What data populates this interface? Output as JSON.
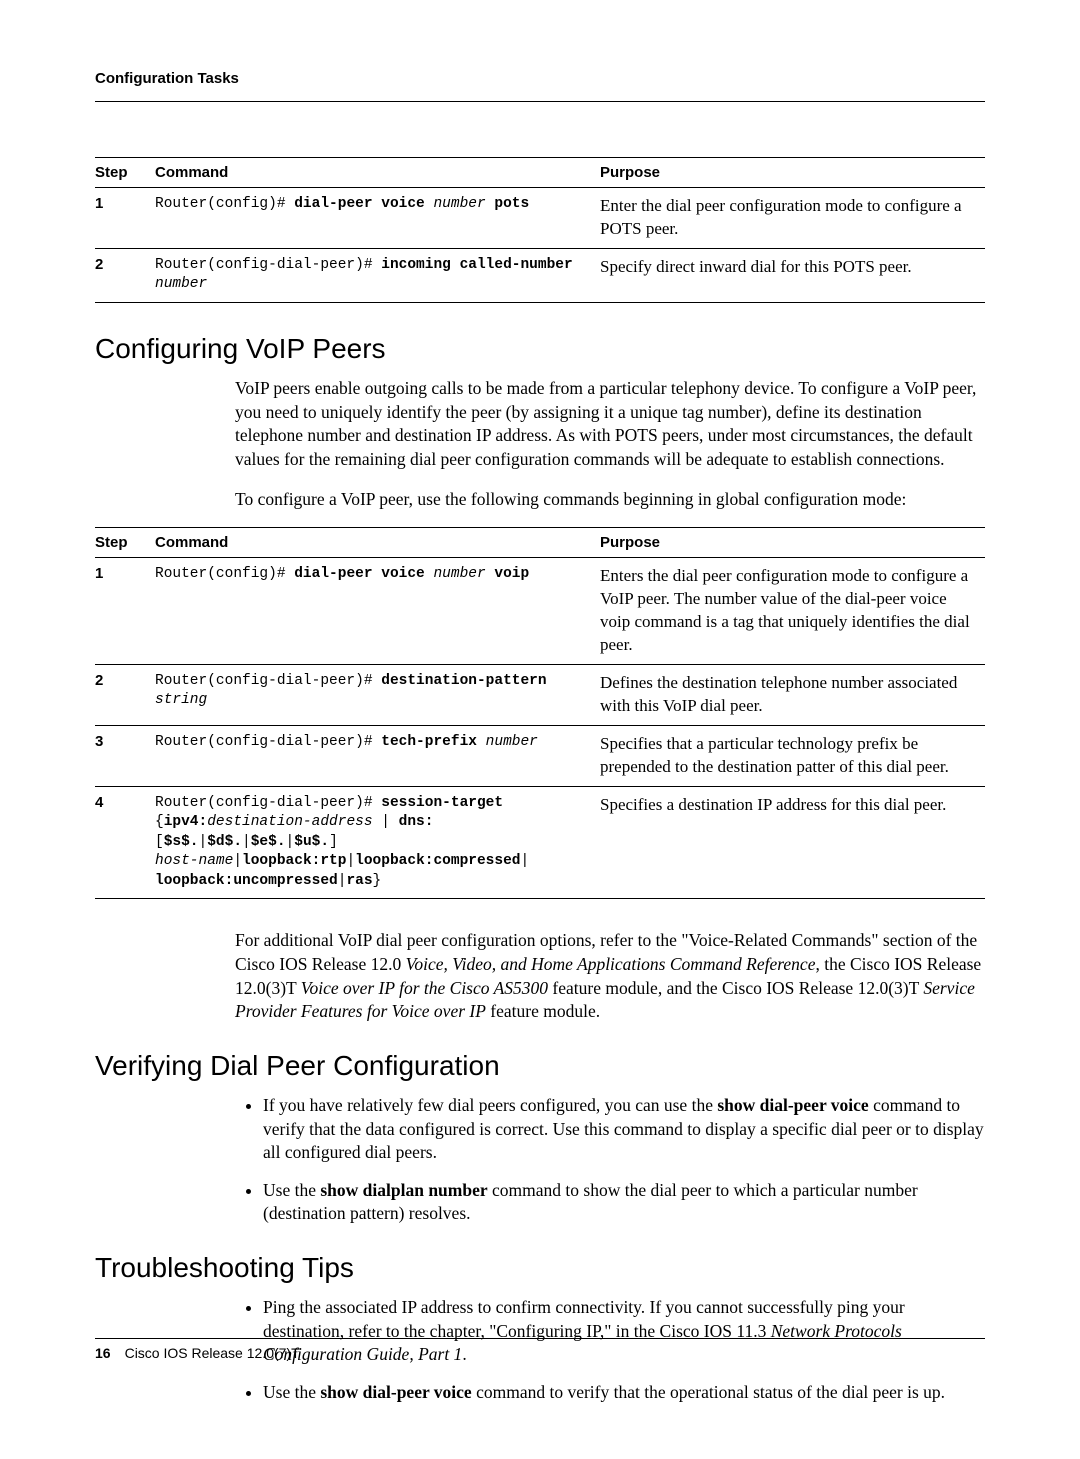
{
  "header": {
    "title": "Configuration Tasks"
  },
  "table1": {
    "headers": {
      "step": "Step",
      "command": "Command",
      "purpose": "Purpose"
    },
    "rows": [
      {
        "step": "1",
        "cmd_segments": [
          {
            "t": "Router(config)# ",
            "b": false,
            "i": false
          },
          {
            "t": "dial-peer voice ",
            "b": true,
            "i": false
          },
          {
            "t": "number ",
            "b": false,
            "i": true
          },
          {
            "t": "pots",
            "b": true,
            "i": false
          }
        ],
        "purpose": "Enter the dial peer configuration mode to configure a POTS peer."
      },
      {
        "step": "2",
        "cmd_segments": [
          {
            "t": "Router(config-dial-peer)# ",
            "b": false,
            "i": false
          },
          {
            "t": "incoming called-number",
            "b": true,
            "i": false
          },
          {
            "t": "\n",
            "b": false,
            "i": false
          },
          {
            "t": "number",
            "b": false,
            "i": true
          }
        ],
        "purpose": "Specify direct inward dial for this POTS peer."
      }
    ]
  },
  "section_voip": {
    "title": "Configuring VoIP Peers",
    "para1": "VoIP peers enable outgoing calls to be made from a particular telephony device. To configure a VoIP peer, you need to uniquely identify the peer (by assigning it a unique tag number), define its destination telephone number and destination IP address. As with POTS peers, under most circumstances, the default values for the remaining dial peer configuration commands will be adequate to establish connections.",
    "para2": "To configure a VoIP peer, use the following commands beginning in global configuration mode:"
  },
  "table2": {
    "headers": {
      "step": "Step",
      "command": "Command",
      "purpose": "Purpose"
    },
    "rows": [
      {
        "step": "1",
        "cmd_segments": [
          {
            "t": "Router(config)# ",
            "b": false,
            "i": false
          },
          {
            "t": "dial-peer voice ",
            "b": true,
            "i": false
          },
          {
            "t": "number ",
            "b": false,
            "i": true
          },
          {
            "t": "voip",
            "b": true,
            "i": false
          }
        ],
        "purpose": "Enters the dial peer configuration mode to configure a VoIP peer. The number value of the dial-peer voice voip command is a tag that uniquely identifies the dial peer."
      },
      {
        "step": "2",
        "cmd_segments": [
          {
            "t": "Router(config-dial-peer)# ",
            "b": false,
            "i": false
          },
          {
            "t": "destination-pattern ",
            "b": true,
            "i": false
          },
          {
            "t": "string",
            "b": false,
            "i": true
          }
        ],
        "purpose": "Defines the destination telephone number associated with this VoIP dial peer."
      },
      {
        "step": "3",
        "cmd_segments": [
          {
            "t": "Router(config-dial-peer)# ",
            "b": false,
            "i": false
          },
          {
            "t": "tech-prefix ",
            "b": true,
            "i": false
          },
          {
            "t": "number",
            "b": false,
            "i": true
          }
        ],
        "purpose": "Specifies that a particular technology prefix be prepended to the destination patter of this dial peer."
      },
      {
        "step": "4",
        "cmd_segments": [
          {
            "t": "Router(config-dial-peer)# ",
            "b": false,
            "i": false
          },
          {
            "t": "session-target",
            "b": true,
            "i": false
          },
          {
            "t": "\n{",
            "b": false,
            "i": false
          },
          {
            "t": "ipv4:",
            "b": true,
            "i": false
          },
          {
            "t": "destination-address",
            "b": false,
            "i": true
          },
          {
            "t": " | ",
            "b": false,
            "i": false
          },
          {
            "t": "dns:",
            "b": true,
            "i": false
          },
          {
            "t": "[",
            "b": false,
            "i": false
          },
          {
            "t": "$s$.",
            "b": true,
            "i": false
          },
          {
            "t": "|",
            "b": false,
            "i": false
          },
          {
            "t": "$d$.",
            "b": true,
            "i": false
          },
          {
            "t": "|",
            "b": false,
            "i": false
          },
          {
            "t": "$e$.",
            "b": true,
            "i": false
          },
          {
            "t": "|",
            "b": false,
            "i": false
          },
          {
            "t": "$u$.",
            "b": true,
            "i": false
          },
          {
            "t": "]\n",
            "b": false,
            "i": false
          },
          {
            "t": "host-name",
            "b": false,
            "i": true
          },
          {
            "t": "|",
            "b": false,
            "i": false
          },
          {
            "t": "loopback:rtp",
            "b": true,
            "i": false
          },
          {
            "t": "|",
            "b": false,
            "i": false
          },
          {
            "t": "loopback:compressed",
            "b": true,
            "i": false
          },
          {
            "t": "|\n",
            "b": false,
            "i": false
          },
          {
            "t": "loopback:uncompressed",
            "b": true,
            "i": false
          },
          {
            "t": "|",
            "b": false,
            "i": false
          },
          {
            "t": "ras",
            "b": true,
            "i": false
          },
          {
            "t": "}",
            "b": false,
            "i": false
          }
        ],
        "purpose": "Specifies a destination IP address for this dial peer."
      }
    ]
  },
  "voip_followup": {
    "segments": [
      {
        "t": "For additional VoIP dial peer configuration options, refer to the \"Voice-Related Commands\" section of the Cisco IOS Release 12.0 ",
        "b": false,
        "i": false
      },
      {
        "t": "Voice, Video, and Home Applications Command Reference",
        "b": false,
        "i": true
      },
      {
        "t": ", the Cisco IOS Release 12.0(3)T ",
        "b": false,
        "i": false
      },
      {
        "t": "Voice over IP for the Cisco AS5300",
        "b": false,
        "i": true
      },
      {
        "t": " feature module, and the Cisco IOS Release 12.0(3)T ",
        "b": false,
        "i": false
      },
      {
        "t": "Service Provider Features for Voice over IP",
        "b": false,
        "i": true
      },
      {
        "t": " feature module.",
        "b": false,
        "i": false
      }
    ]
  },
  "section_verify": {
    "title": "Verifying Dial Peer Configuration",
    "bullets": [
      {
        "segments": [
          {
            "t": "If you have relatively few dial peers configured, you can use the ",
            "b": false,
            "i": false
          },
          {
            "t": "show dial-peer voice",
            "b": true,
            "i": false
          },
          {
            "t": " command to verify that the data configured is correct. Use this command to display a specific dial peer or to display all configured dial peers.",
            "b": false,
            "i": false
          }
        ]
      },
      {
        "segments": [
          {
            "t": "Use the ",
            "b": false,
            "i": false
          },
          {
            "t": "show dialplan number",
            "b": true,
            "i": false
          },
          {
            "t": " command to show the dial peer to which a particular number (destination pattern) resolves.",
            "b": false,
            "i": false
          }
        ]
      }
    ]
  },
  "section_trouble": {
    "title": "Troubleshooting Tips",
    "bullets": [
      {
        "segments": [
          {
            "t": "Ping the associated IP address to confirm connectivity. If you cannot successfully ping your destination, refer to the chapter, \"Configuring IP,\" in the Cisco IOS 11.3 ",
            "b": false,
            "i": false
          },
          {
            "t": "Network Protocols Configuration Guide, Part 1",
            "b": false,
            "i": true
          },
          {
            "t": ".",
            "b": false,
            "i": false
          }
        ]
      },
      {
        "segments": [
          {
            "t": "Use the ",
            "b": false,
            "i": false
          },
          {
            "t": "show dial-peer voice",
            "b": true,
            "i": false
          },
          {
            "t": " command to verify that the operational status of the dial peer is up.",
            "b": false,
            "i": false
          }
        ]
      }
    ]
  },
  "footer": {
    "page": "16",
    "text": "Cisco IOS Release 12.0(7)T"
  }
}
